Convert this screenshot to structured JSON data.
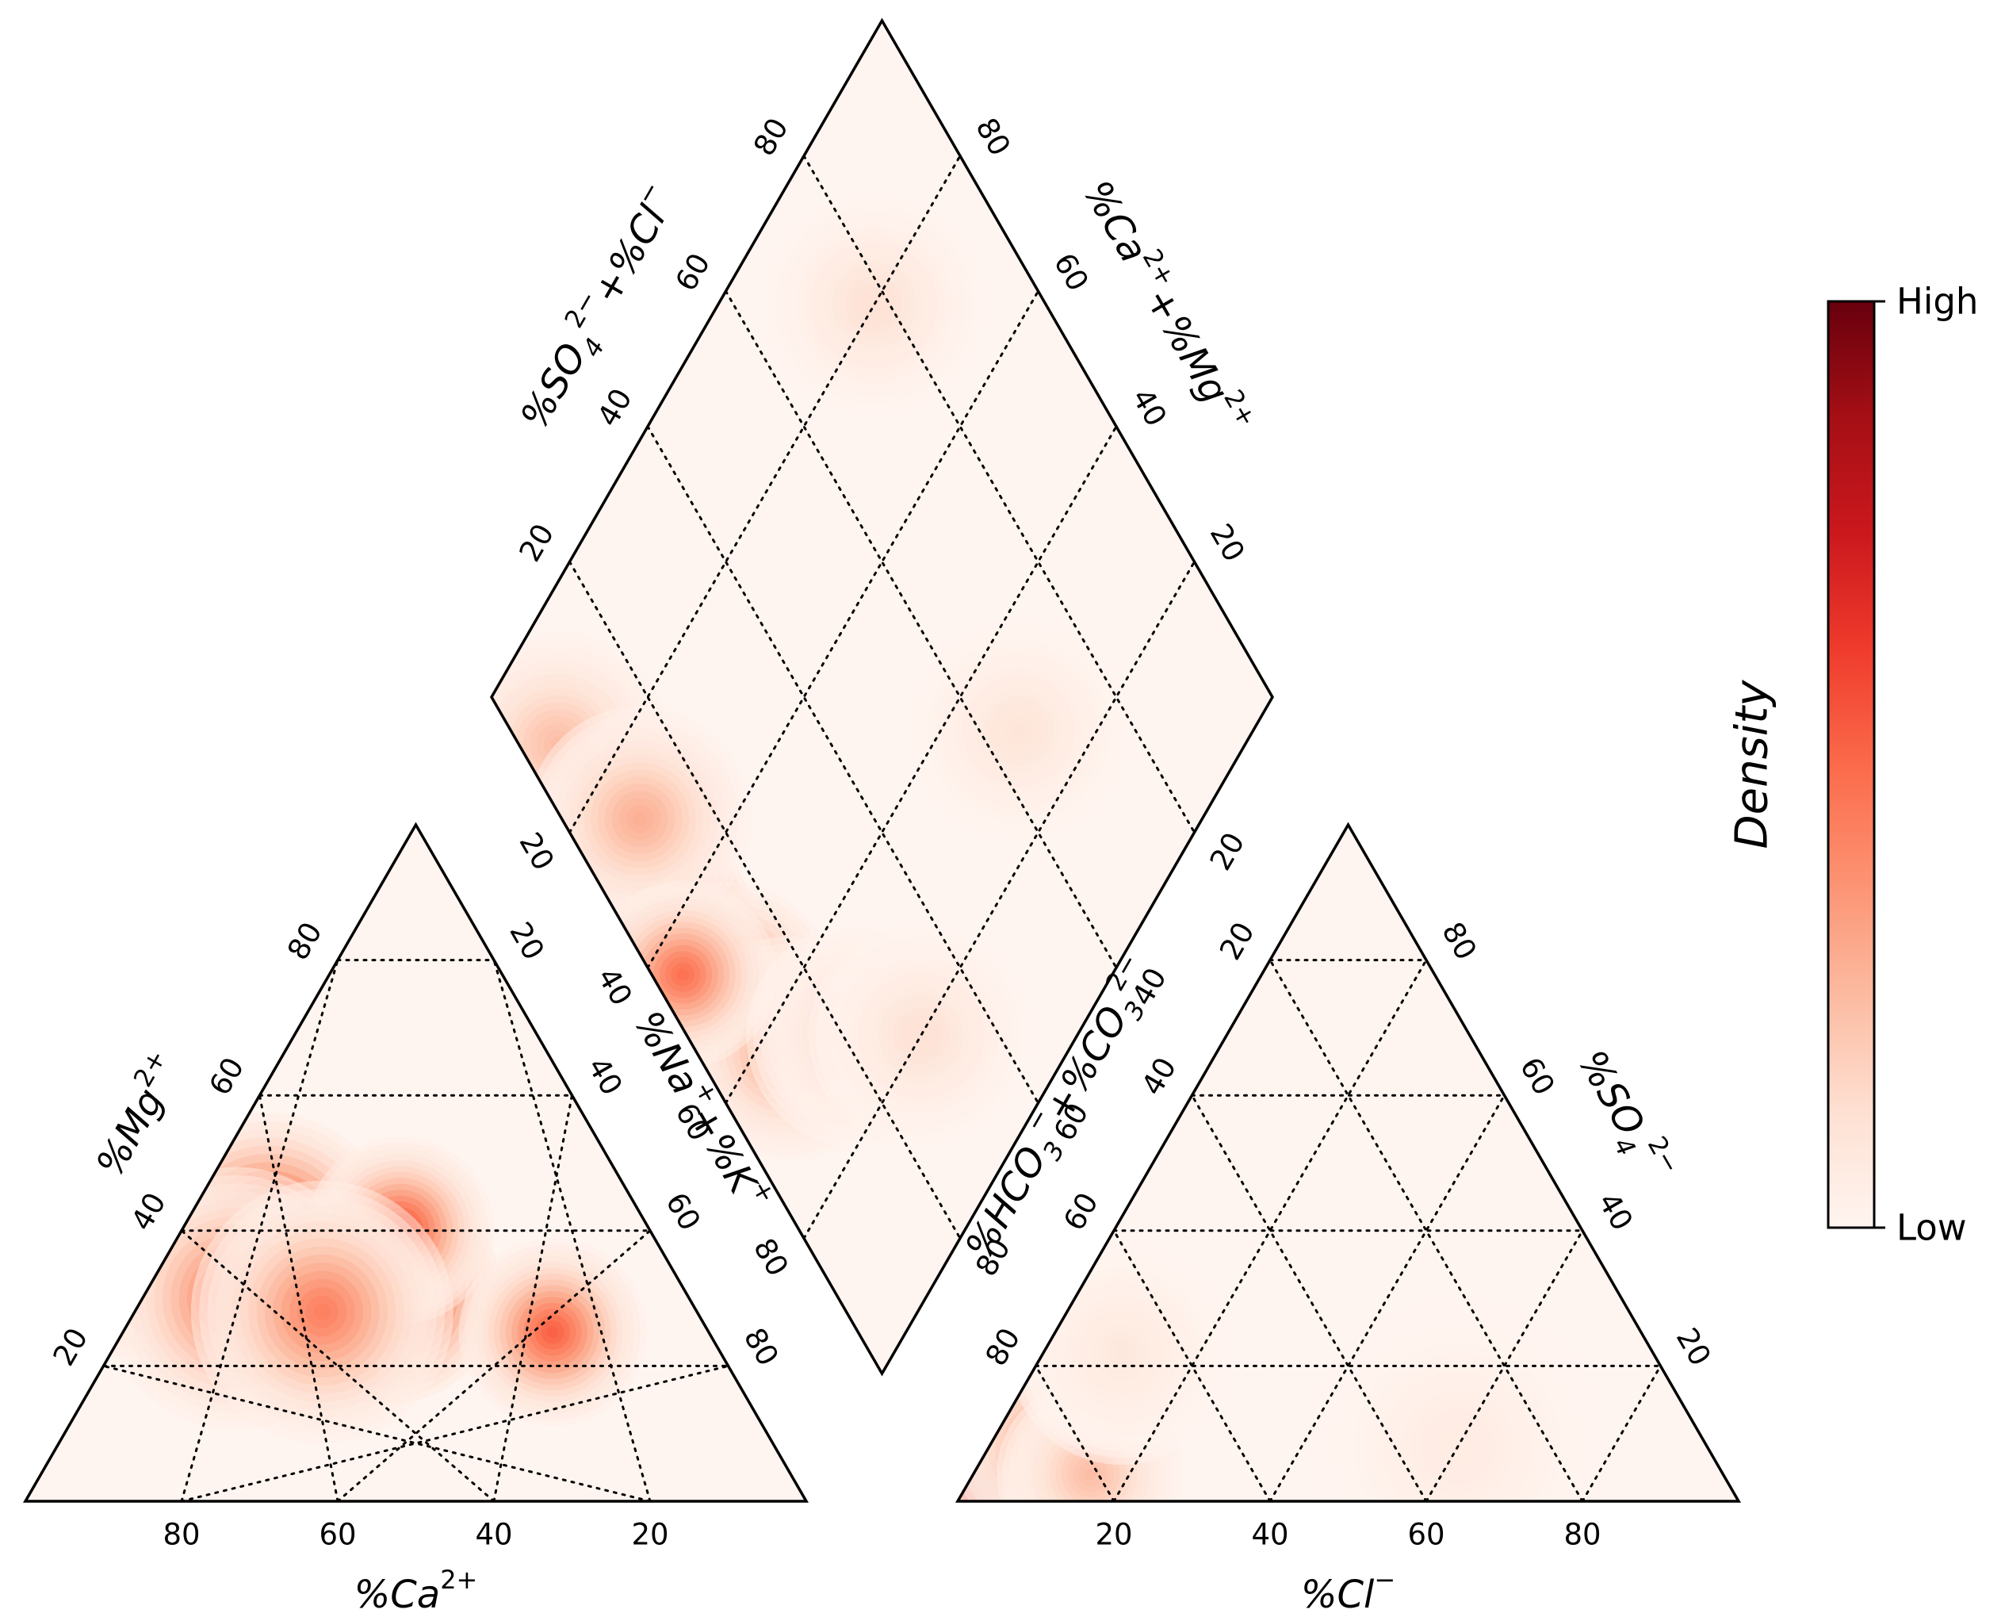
{
  "chart_data": {
    "type": "piper-density",
    "colormap": [
      "#fff5f0",
      "#fee0d2",
      "#fcbba1",
      "#fc9272",
      "#fb6a4a",
      "#ef3b2c",
      "#cb181d",
      "#a50f15",
      "#67000d"
    ],
    "ticks": [
      "20",
      "40",
      "60",
      "80"
    ],
    "cation_triangle": {
      "x_label": "%Ca",
      "x_label_sup": "2+",
      "left_label": "%Mg",
      "left_label_sup": "2+",
      "right_label": "%Na",
      "right_label_sup": "+",
      "right_label_2": "+%K",
      "right_label_2_sup": "+",
      "hotspots": [
        {
          "ca": 38,
          "mg": 31,
          "intensity": 1.0,
          "spread": 6
        },
        {
          "ca": 50,
          "mg": 38,
          "intensity": 0.85,
          "spread": 7
        },
        {
          "ca": 70,
          "mg": 38,
          "intensity": 0.6,
          "spread": 6
        },
        {
          "ca": 58,
          "mg": 30,
          "intensity": 0.5,
          "spread": 7
        },
        {
          "ca": 32,
          "mg": 40,
          "intensity": 0.6,
          "spread": 5
        },
        {
          "ca": 20,
          "mg": 25,
          "intensity": 0.55,
          "spread": 5
        },
        {
          "ca": 48,
          "mg": 28,
          "intensity": 0.45,
          "spread": 7
        },
        {
          "ca": 45,
          "mg": 72,
          "intensity": 0.12,
          "spread": 5
        }
      ]
    },
    "anion_triangle": {
      "x_label": "%Cl",
      "x_label_sup": "−",
      "left_label": "%HCO",
      "left_label_sub": "3",
      "left_label_sup": "−",
      "left_label_2": "+%CO",
      "left_label_2_sub": "3",
      "left_label_2_sup": "2−",
      "right_label": "%SO",
      "right_label_sub": "4",
      "right_label_sup": "2−",
      "hotspots": [
        {
          "cl": 3,
          "so4": 3,
          "intensity": 1.0,
          "spread": 5
        },
        {
          "cl": 8,
          "so4": 8,
          "intensity": 0.35,
          "spread": 6
        },
        {
          "cl": 15,
          "so4": 4,
          "intensity": 0.25,
          "spread": 5
        },
        {
          "cl": 10,
          "so4": 22,
          "intensity": 0.08,
          "spread": 6
        },
        {
          "cl": 60,
          "so4": 8,
          "intensity": 0.06,
          "spread": 8
        }
      ]
    },
    "diamond": {
      "upper_left_label": "%SO",
      "upper_left_label_sub": "4",
      "upper_left_label_sup": "2−",
      "upper_left_label_2": "+%Cl",
      "upper_left_label_2_sup": "−",
      "upper_right_label": "%Ca",
      "upper_right_label_sup": "2+",
      "upper_right_label_2": "+%Mg",
      "upper_right_label_2_sup": "2+",
      "lower_left_label": "%Na",
      "lower_left_label_sup": "+",
      "lower_left_label_2": "+%K",
      "lower_left_label_2_sup": "+",
      "lower_right_label": "%HCO",
      "lower_right_label_sub": "3",
      "lower_right_label_sup": "−",
      "lower_right_label_2": "+%CO",
      "lower_right_label_2_sub": "3",
      "lower_right_label_2_sup": "2−",
      "hotspots": [
        {
          "cation": 38,
          "anion": 5,
          "intensity": 1.0,
          "spread": 5
        },
        {
          "cation": 22,
          "anion": 5,
          "intensity": 0.85,
          "spread": 6
        },
        {
          "cation": 52,
          "anion": 8,
          "intensity": 0.6,
          "spread": 6
        },
        {
          "cation": 64,
          "anion": 12,
          "intensity": 0.35,
          "spread": 6
        },
        {
          "cation": 12,
          "anion": 5,
          "intensity": 0.25,
          "spread": 6
        },
        {
          "cation": 28,
          "anion": 10,
          "intensity": 0.3,
          "spread": 6
        },
        {
          "cation": 45,
          "anion": 4,
          "intensity": 0.5,
          "spread": 5
        },
        {
          "cation": 72,
          "anion": 22,
          "intensity": 0.15,
          "spread": 6
        },
        {
          "cation": 70,
          "anion": 65,
          "intensity": 0.1,
          "spread": 6
        },
        {
          "cation": 20,
          "anion": 78,
          "intensity": 0.12,
          "spread": 6
        },
        {
          "cation": 80,
          "anion": 30,
          "intensity": 0.12,
          "spread": 6
        }
      ]
    },
    "colorbar": {
      "title": "Density",
      "high_label": "High",
      "low_label": "Low"
    }
  }
}
